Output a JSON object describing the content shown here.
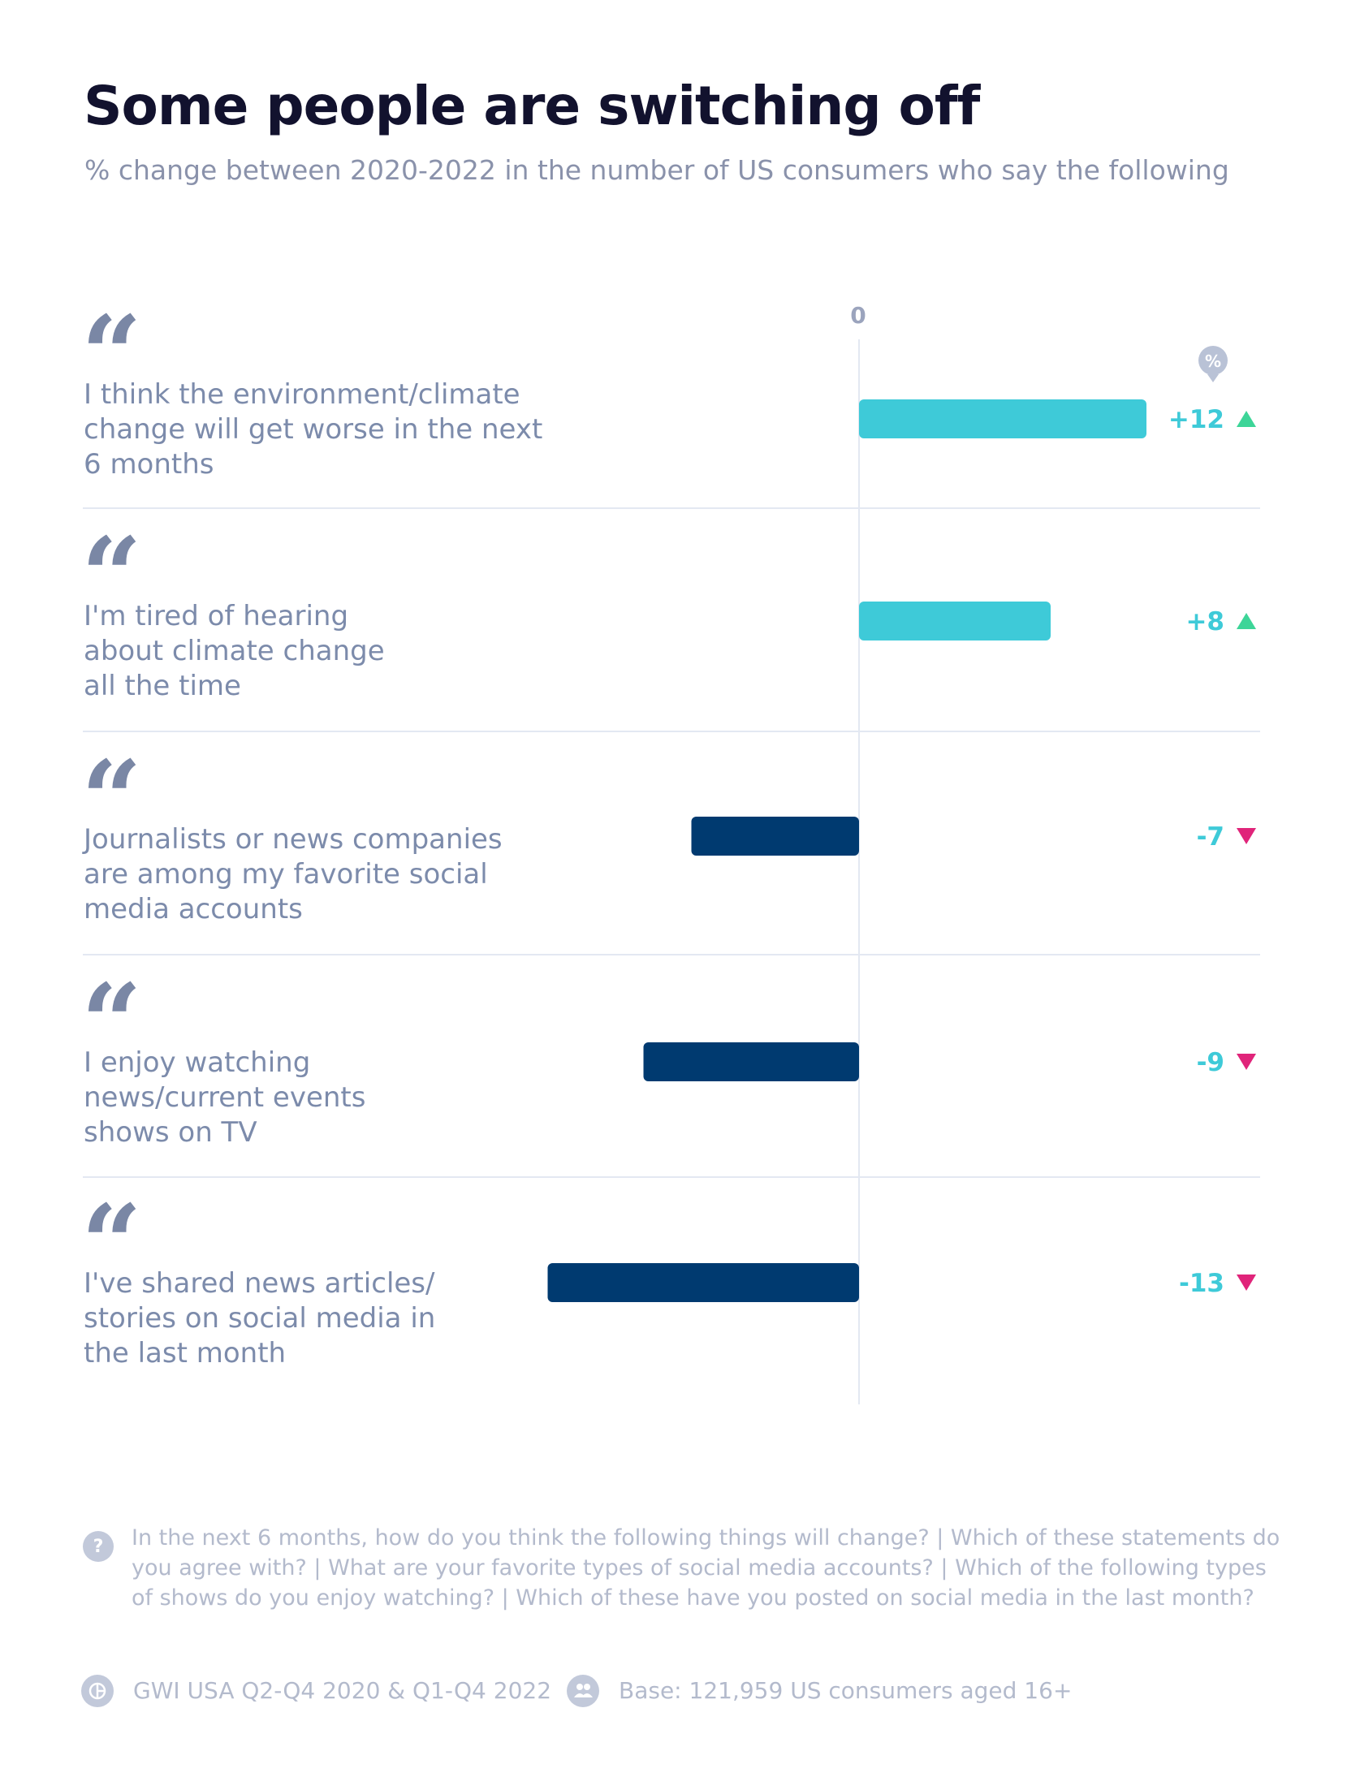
{
  "title": "Some people are switching off",
  "subtitle": "% change between 2020-2022 in the number of US consumers who say the following",
  "chart_data": {
    "type": "bar",
    "orientation": "horizontal",
    "axis_label_zero": "0",
    "unit_badge": "%",
    "categories": [
      [
        "I think the environment/climate",
        "change will get worse in the next",
        "6 months"
      ],
      [
        "I'm tired of hearing",
        "about climate change",
        "all the time"
      ],
      [
        "Journalists or news companies",
        "are among my favorite social",
        "media accounts"
      ],
      [
        "I enjoy watching",
        "news/current events",
        "shows on TV"
      ],
      [
        "I've shared news articles/",
        "stories on social media in",
        "the last month"
      ]
    ],
    "values": [
      12,
      8,
      -7,
      -9,
      -13
    ],
    "labels": [
      "+12",
      "+8",
      "-7",
      "-9",
      "-13"
    ],
    "colors": {
      "positive": "#3ecad8",
      "negative": "#003a70",
      "up_arrow": "#3dd598",
      "down_arrow": "#e0247a",
      "label": "#3ecad8"
    }
  },
  "footer": {
    "question_icon": "?",
    "questions": "In the next 6 months, how do you think the following things will change? | Which of these statements do you agree with? | What are your favorite types of social media accounts? | Which of the following types of shows do you enjoy watching? | Which of these have you posted on social media in the last month?",
    "source": "GWI USA Q2-Q4 2020 & Q1-Q4 2022",
    "base": "Base: 121,959 US consumers aged 16+"
  }
}
